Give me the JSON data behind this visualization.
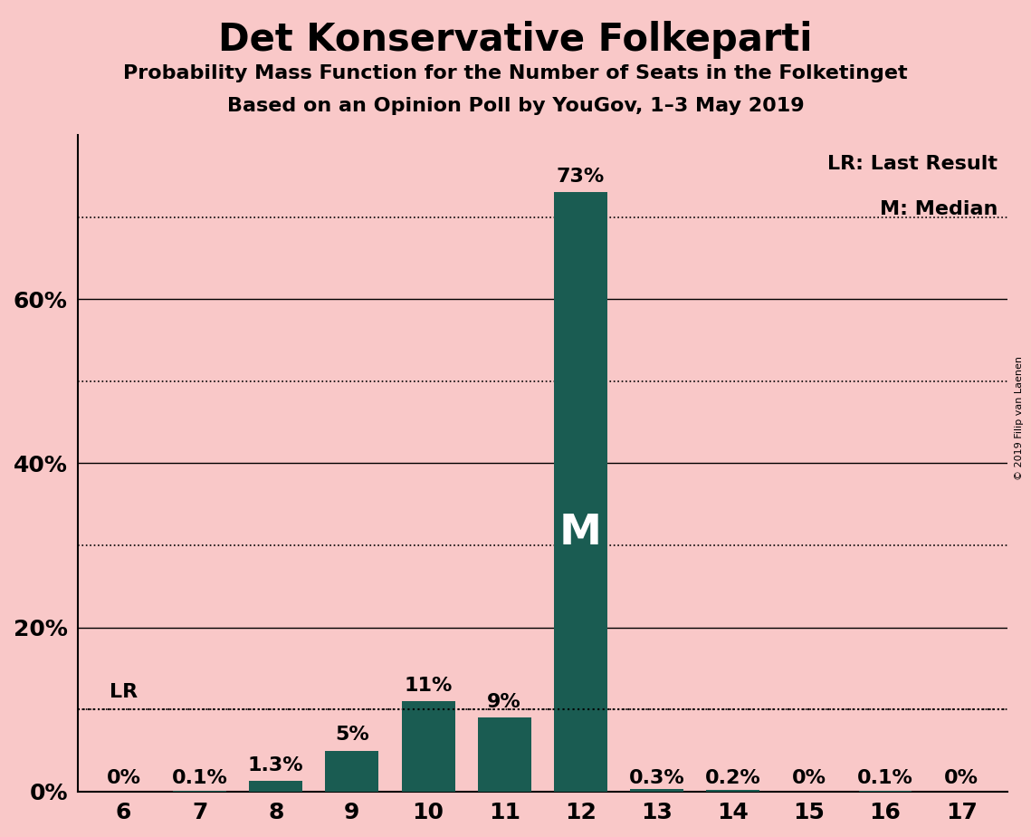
{
  "title": "Det Konservative Folkeparti",
  "subtitle1": "Probability Mass Function for the Number of Seats in the Folketinget",
  "subtitle2": "Based on an Opinion Poll by YouGov, 1–3 May 2019",
  "copyright": "© 2019 Filip van Laenen",
  "categories": [
    6,
    7,
    8,
    9,
    10,
    11,
    12,
    13,
    14,
    15,
    16,
    17
  ],
  "values": [
    0.0,
    0.1,
    1.3,
    5.0,
    11.0,
    9.0,
    73.0,
    0.3,
    0.2,
    0.0,
    0.1,
    0.0
  ],
  "bar_color": "#1a5c52",
  "background_color": "#f9c8c8",
  "ylim": [
    0,
    80
  ],
  "lr_value": 10.0,
  "median_seat": 12,
  "label_positions": {
    "6": "0%",
    "7": "0.1%",
    "8": "1.3%",
    "9": "5%",
    "10": "11%",
    "11": "9%",
    "12": "73%",
    "13": "0.3%",
    "14": "0.2%",
    "15": "0%",
    "16": "0.1%",
    "17": "0%"
  },
  "solid_gridlines": [
    20,
    40,
    60
  ],
  "dotted_gridlines": [
    10,
    30,
    50,
    70
  ],
  "ytick_positions": [
    0,
    20,
    40,
    60
  ],
  "ytick_labels": [
    "0%",
    "20%",
    "40%",
    "60%"
  ],
  "title_fontsize": 30,
  "subtitle_fontsize": 16,
  "axis_fontsize": 18,
  "bar_label_fontsize": 16,
  "legend_fontsize": 16,
  "median_fontsize": 34
}
